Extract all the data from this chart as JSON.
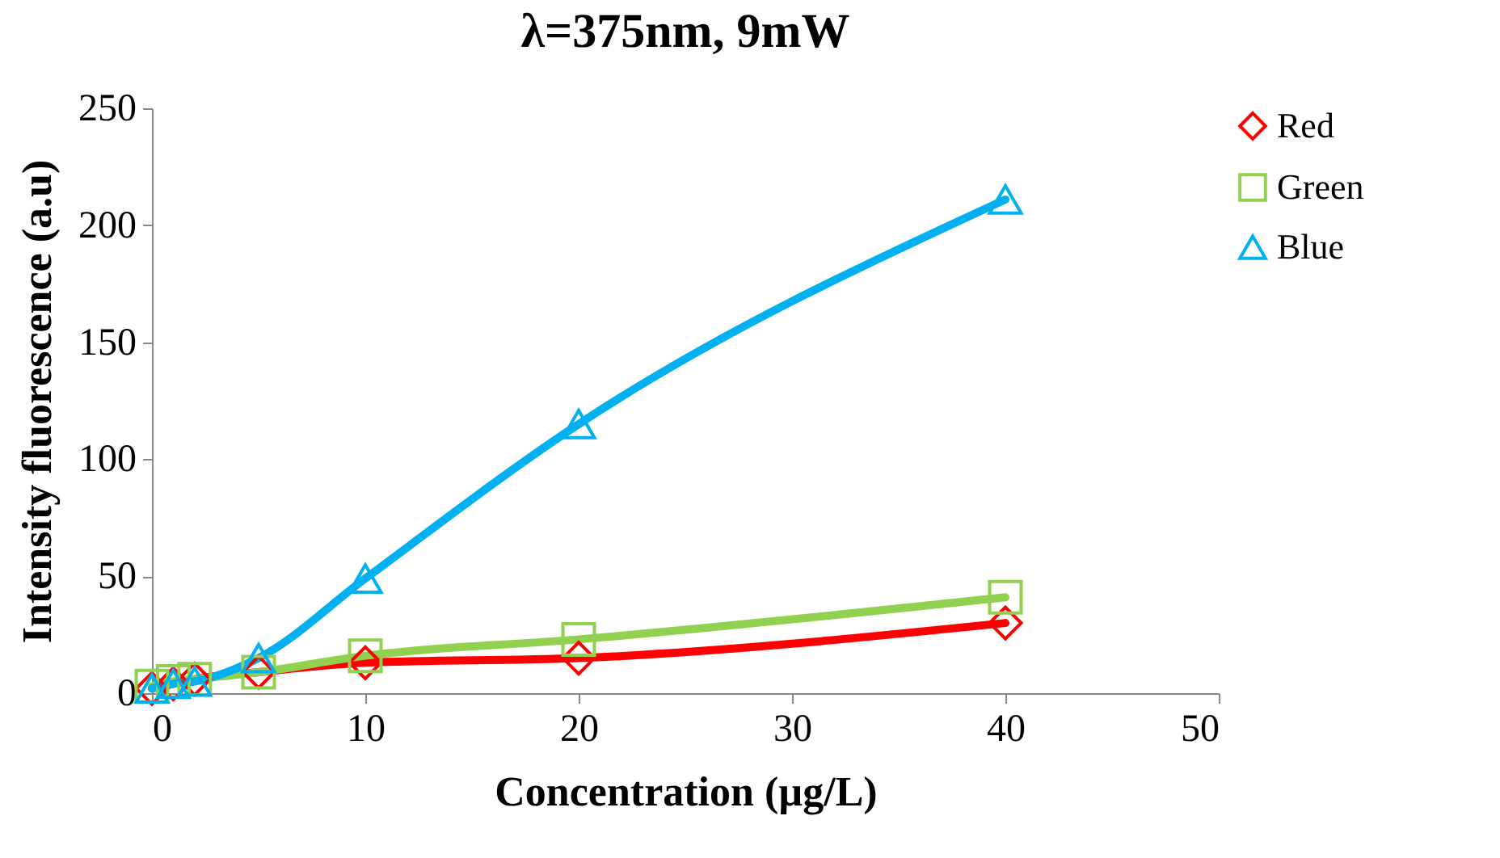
{
  "chart_data": {
    "type": "line",
    "title": "λ=375nm, 9mW",
    "xlabel": "Concentration (µg/L)",
    "ylabel": "Intensity fluorescence (a.u)",
    "x": [
      0,
      1,
      2,
      5,
      10,
      20,
      40
    ],
    "series": [
      {
        "name": "Red",
        "color": "#ff0000",
        "marker": "diamond",
        "values": [
          2,
          4,
          6,
          9,
          13,
          15,
          30
        ]
      },
      {
        "name": "Green",
        "color": "#92d050",
        "marker": "square",
        "values": [
          3,
          5,
          6,
          9,
          16,
          23,
          41
        ]
      },
      {
        "name": "Blue",
        "color": "#00b0f0",
        "marker": "triangle",
        "values": [
          2,
          4,
          5,
          15,
          49,
          115,
          211
        ]
      }
    ],
    "xlim": [
      0,
      50
    ],
    "xticks": [
      0,
      10,
      20,
      30,
      40,
      50
    ],
    "ylim": [
      0,
      250
    ],
    "yticks": [
      0,
      50,
      100,
      150,
      200,
      250
    ],
    "grid": false,
    "legend": "right",
    "line_style": "solid"
  }
}
